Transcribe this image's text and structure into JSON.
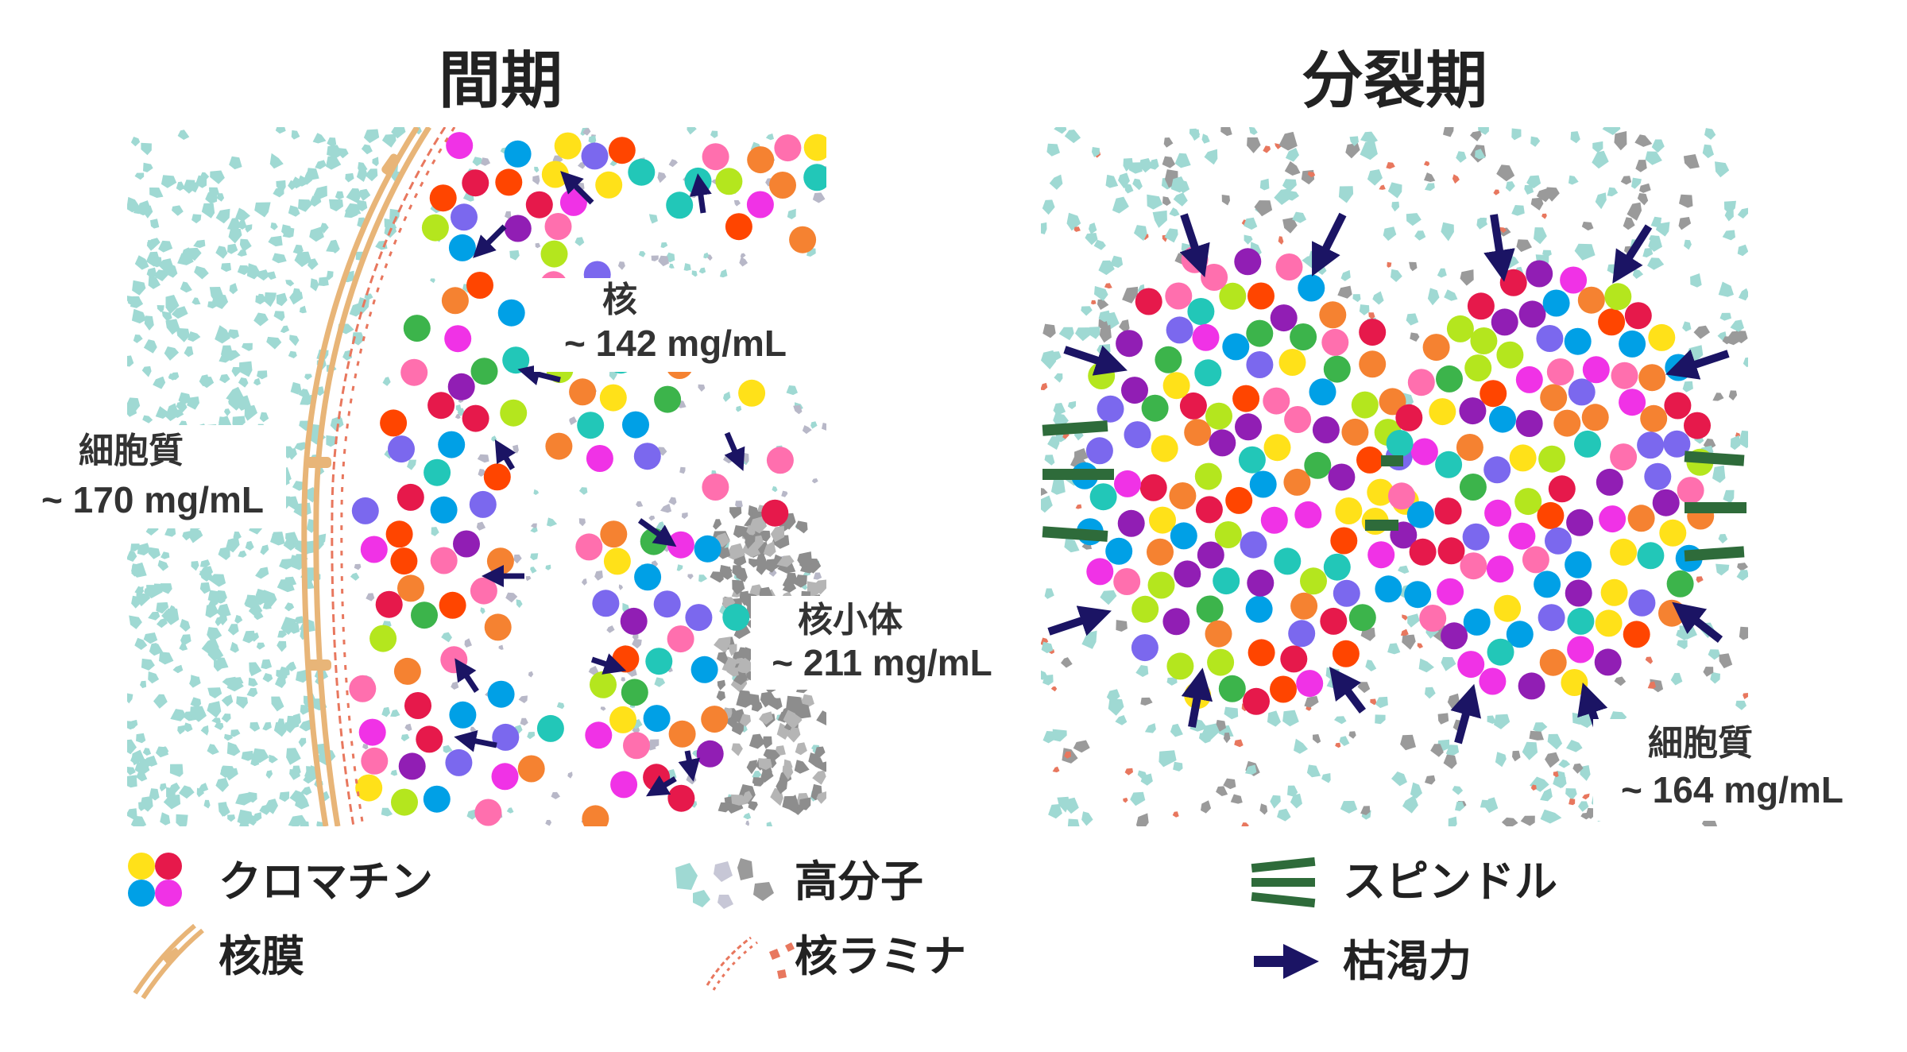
{
  "titles": {
    "interphase": "間期",
    "mitosis": "分裂期"
  },
  "labels": {
    "interphase_cytoplasm_name": "細胞質",
    "interphase_cytoplasm_value": "~ 170 mg/mL",
    "nucleus_name": "核",
    "nucleus_value": "~ 142 mg/mL",
    "nucleolus_name": "核小体",
    "nucleolus_value": "~ 211 mg/mL",
    "mitosis_cytoplasm_name": "細胞質",
    "mitosis_cytoplasm_value": "~ 164 mg/mL"
  },
  "legend": {
    "chromatin": "クロマチン",
    "nuclear_envelope": "核膜",
    "macromolecule": "高分子",
    "nuclear_lamina": "核ラミナ",
    "spindle": "スピンドル",
    "depletion_force": "枯渇力"
  },
  "colors": {
    "cytoplasm_flake": "#9fd9d3",
    "macromolecule_gray": "#9a9a9a",
    "envelope": "#e8b578",
    "lamina": "#e8775e",
    "spindle": "#2e6b3a",
    "arrow": "#1b1464",
    "chromatin_palette": [
      "#e6194b",
      "#f58231",
      "#ffe119",
      "#3cb44b",
      "#00a0e6",
      "#911eb4",
      "#f032e6",
      "#ff6fae",
      "#22c7b8",
      "#b4e61e",
      "#7b68ee",
      "#ff4500"
    ]
  }
}
